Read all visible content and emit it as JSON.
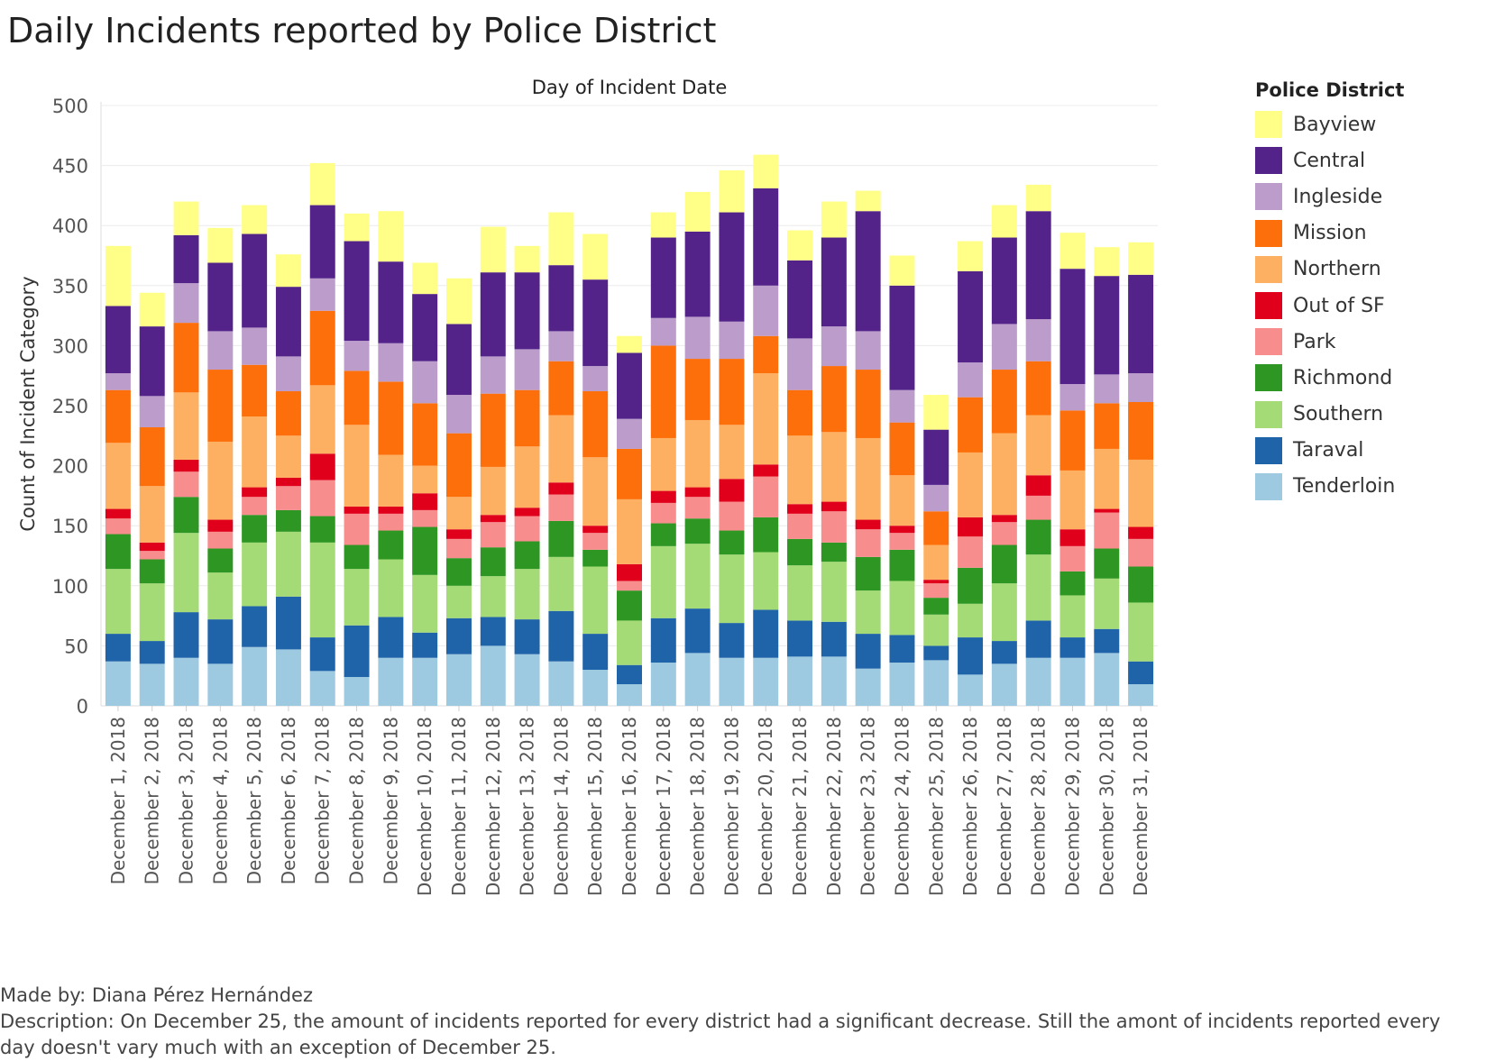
{
  "title": "Daily Incidents reported by Police District",
  "footer": {
    "made_by": "Made by: Diana Pérez Hernández",
    "description": "Description: On December 25, the amount of incidents reported for every district had a significant decrease. Still the amont of incidents reported every day doesn't vary much with an exception of December 25."
  },
  "chart_data": {
    "type": "bar",
    "stacked": true,
    "title": "Day of Incident Date",
    "xlabel": "",
    "ylabel": "Count of Incident Category",
    "ylim": [
      0,
      500
    ],
    "yticks": [
      0,
      50,
      100,
      150,
      200,
      250,
      300,
      350,
      400,
      450,
      500
    ],
    "legend_title": "Police District",
    "legend_position": "right",
    "categories": [
      "December 1, 2018",
      "December 2, 2018",
      "December 3, 2018",
      "December 4, 2018",
      "December 5, 2018",
      "December 6, 2018",
      "December 7, 2018",
      "December 8, 2018",
      "December 9, 2018",
      "December 10, 2018",
      "December 11, 2018",
      "December 12, 2018",
      "December 13, 2018",
      "December 14, 2018",
      "December 15, 2018",
      "December 16, 2018",
      "December 17, 2018",
      "December 18, 2018",
      "December 19, 2018",
      "December 20, 2018",
      "December 21, 2018",
      "December 22, 2018",
      "December 23, 2018",
      "December 24, 2018",
      "December 25, 2018",
      "December 26, 2018",
      "December 27, 2018",
      "December 28, 2018",
      "December 29, 2018",
      "December 30, 2018",
      "December 31, 2018"
    ],
    "series": [
      {
        "name": "Tenderloin",
        "color": "#9ecae1",
        "values": [
          37,
          35,
          40,
          35,
          49,
          47,
          29,
          24,
          40,
          40,
          43,
          50,
          43,
          37,
          30,
          18,
          36,
          44,
          40,
          40,
          41,
          41,
          31,
          36,
          38,
          26,
          35,
          40,
          40,
          44,
          18
        ]
      },
      {
        "name": "Taraval",
        "color": "#1f63a8",
        "values": [
          23,
          19,
          38,
          37,
          34,
          44,
          28,
          43,
          34,
          21,
          30,
          24,
          29,
          42,
          30,
          16,
          37,
          37,
          29,
          40,
          30,
          29,
          29,
          23,
          12,
          31,
          19,
          31,
          17,
          20,
          19
        ]
      },
      {
        "name": "Southern",
        "color": "#a5db76",
        "values": [
          54,
          48,
          66,
          39,
          53,
          54,
          79,
          47,
          48,
          48,
          27,
          34,
          42,
          45,
          56,
          37,
          60,
          54,
          57,
          48,
          46,
          50,
          36,
          45,
          26,
          28,
          48,
          55,
          35,
          42,
          49
        ]
      },
      {
        "name": "Richmond",
        "color": "#2e9623",
        "values": [
          29,
          20,
          30,
          20,
          23,
          18,
          22,
          20,
          24,
          40,
          23,
          24,
          23,
          30,
          14,
          25,
          19,
          21,
          20,
          29,
          22,
          16,
          28,
          26,
          14,
          30,
          32,
          29,
          20,
          25,
          30
        ]
      },
      {
        "name": "Park",
        "color": "#f88d8d",
        "values": [
          13,
          7,
          21,
          14,
          15,
          20,
          30,
          26,
          14,
          14,
          16,
          21,
          21,
          22,
          14,
          8,
          17,
          18,
          24,
          34,
          21,
          26,
          23,
          14,
          12,
          26,
          19,
          20,
          21,
          30,
          23
        ]
      },
      {
        "name": "Out of SF",
        "color": "#e0001b",
        "values": [
          8,
          7,
          10,
          10,
          8,
          7,
          22,
          6,
          6,
          14,
          8,
          6,
          7,
          10,
          6,
          14,
          10,
          8,
          19,
          10,
          8,
          8,
          8,
          6,
          3,
          16,
          6,
          17,
          14,
          3,
          10
        ]
      },
      {
        "name": "Northern",
        "color": "#fdb062",
        "values": [
          55,
          47,
          56,
          65,
          59,
          35,
          57,
          68,
          43,
          23,
          27,
          40,
          51,
          56,
          57,
          54,
          44,
          56,
          45,
          76,
          57,
          58,
          68,
          42,
          29,
          54,
          68,
          50,
          49,
          50,
          56
        ]
      },
      {
        "name": "Mission",
        "color": "#fc6f0a",
        "values": [
          44,
          49,
          58,
          60,
          43,
          37,
          62,
          45,
          61,
          52,
          53,
          61,
          47,
          45,
          55,
          42,
          77,
          51,
          55,
          31,
          38,
          55,
          57,
          44,
          28,
          46,
          53,
          45,
          50,
          38,
          48
        ]
      },
      {
        "name": "Ingleside",
        "color": "#bb9ccb",
        "values": [
          14,
          26,
          33,
          32,
          31,
          29,
          27,
          25,
          32,
          35,
          32,
          31,
          34,
          25,
          21,
          25,
          23,
          35,
          31,
          42,
          43,
          33,
          32,
          27,
          22,
          29,
          38,
          35,
          22,
          24,
          24
        ]
      },
      {
        "name": "Central",
        "color": "#53238a",
        "values": [
          56,
          58,
          40,
          57,
          78,
          58,
          61,
          83,
          68,
          56,
          59,
          70,
          64,
          55,
          72,
          55,
          67,
          71,
          91,
          81,
          65,
          74,
          100,
          87,
          46,
          76,
          72,
          90,
          96,
          82,
          82
        ]
      },
      {
        "name": "Bayview",
        "color": "#ffff88",
        "values": [
          50,
          28,
          28,
          29,
          24,
          27,
          35,
          23,
          42,
          26,
          38,
          38,
          22,
          44,
          38,
          14,
          21,
          33,
          35,
          28,
          25,
          30,
          17,
          25,
          29,
          25,
          27,
          22,
          30,
          24,
          27
        ]
      }
    ]
  }
}
